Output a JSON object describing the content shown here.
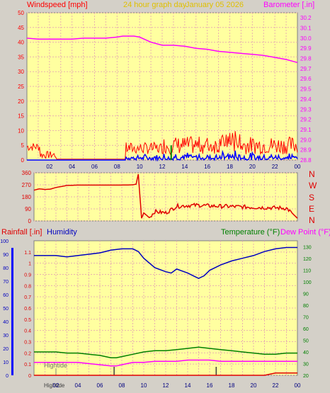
{
  "header": {
    "left_label": "Windspeed [mph]",
    "center_label": "24 hour graph day",
    "date": "January 05 2026",
    "right_label": "Barometer [.in]"
  },
  "middle": {
    "compass": [
      "N",
      "W",
      "S",
      "E",
      "N"
    ]
  },
  "lower_header": {
    "rainfall_label": "Rainfall [.in]",
    "humidity_label": "Humidity",
    "temperature_label": "Temperature (°F)",
    "dewpoint_label": "Dew Point (°F)"
  },
  "annotations": {
    "hightide": "Hightide",
    "hightide_bottom": "Hightide"
  },
  "colors": {
    "panel": "#ffffa0",
    "grid": "#e8b0b0",
    "wind": "#ff0000",
    "gust": "#0000ff",
    "barometer": "#ff00ff",
    "direction": "#e00000",
    "humidity": "#0000c0",
    "temperature": "#008000",
    "dewpoint": "#ff00ff",
    "rain": "#e00000"
  },
  "chart_data": [
    {
      "type": "line",
      "title": "24 hour graph day",
      "x_ticks": [
        "02",
        "04",
        "06",
        "08",
        "10",
        "12",
        "14",
        "16",
        "18",
        "20",
        "22",
        "00"
      ],
      "y_left": {
        "label": "Windspeed [mph]",
        "ylim": [
          0,
          50
        ],
        "ticks": [
          0,
          5,
          10,
          15,
          20,
          25,
          30,
          35,
          40,
          45,
          50
        ]
      },
      "y_right": {
        "label": "Barometer [.in]",
        "ylim": [
          28.8,
          30.25
        ],
        "ticks": [
          28.8,
          28.9,
          29.0,
          29.1,
          29.2,
          29.3,
          29.4,
          29.5,
          29.6,
          29.7,
          29.8,
          29.9,
          30.0,
          30.1,
          30.2
        ]
      },
      "series": [
        {
          "name": "Barometer",
          "axis": "right",
          "x": [
            0,
            1,
            2,
            3,
            4,
            5,
            6,
            7,
            8,
            8.5,
            9,
            9.5,
            10,
            11,
            12,
            13,
            14,
            15,
            16,
            17,
            18,
            19,
            20,
            21,
            22,
            23,
            24
          ],
          "values": [
            30.0,
            29.99,
            29.99,
            29.99,
            29.99,
            30.0,
            30.0,
            30.0,
            30.01,
            30.02,
            30.02,
            30.02,
            30.01,
            29.96,
            29.93,
            29.93,
            29.92,
            29.9,
            29.89,
            29.87,
            29.86,
            29.85,
            29.84,
            29.83,
            29.81,
            29.79,
            29.76
          ]
        }
      ]
    },
    {
      "type": "line",
      "title": "Wind direction",
      "x_ticks": [
        "02",
        "04",
        "06",
        "08",
        "10",
        "12",
        "14",
        "16",
        "18",
        "20",
        "22",
        "00"
      ],
      "y_ticks": [
        0,
        90,
        180,
        270,
        360
      ],
      "ylim": [
        0,
        360
      ],
      "series": [
        {
          "name": "Direction",
          "x": [
            0,
            0.5,
            1,
            1.5,
            2,
            3,
            4,
            5,
            6,
            7,
            8,
            9,
            9.3,
            9.5,
            9.8,
            10,
            10.5,
            11,
            12,
            13,
            14,
            15,
            16,
            17,
            18,
            19,
            20,
            21,
            22,
            23,
            23.5,
            24
          ],
          "values": [
            230,
            240,
            235,
            238,
            250,
            265,
            268,
            268,
            268,
            268,
            268,
            270,
            275,
            350,
            20,
            60,
            25,
            70,
            60,
            110,
            115,
            118,
            112,
            110,
            108,
            105,
            102,
            100,
            98,
            95,
            60,
            20
          ]
        }
      ]
    },
    {
      "type": "line",
      "x_ticks": [
        "02",
        "04",
        "06",
        "08",
        "10",
        "12",
        "14",
        "16",
        "18",
        "20",
        "22",
        "00"
      ],
      "y_left": {
        "label": "Rainfall [.in]",
        "ylim": [
          0,
          1.2
        ],
        "ticks": [
          0,
          0.1,
          0.2,
          0.3,
          0.4,
          0.5,
          0.6,
          0.7,
          0.8,
          0.9,
          1,
          1.1
        ]
      },
      "y_left2": {
        "label": "Humidity",
        "ylim": [
          0,
          100
        ],
        "ticks": [
          0,
          10,
          20,
          30,
          40,
          50,
          60,
          70,
          80,
          90,
          100
        ]
      },
      "y_right": {
        "label": "Temperature (°F)",
        "ylim": [
          20,
          135
        ],
        "ticks": [
          20,
          30,
          40,
          50,
          60,
          70,
          80,
          90,
          100,
          110,
          120,
          130
        ]
      },
      "series": [
        {
          "name": "Humidity",
          "axis": "left2",
          "x": [
            0,
            1,
            2,
            3,
            4,
            5,
            6,
            7,
            8,
            9,
            9.5,
            10,
            11,
            12,
            12.5,
            13,
            14,
            14.5,
            15,
            15.5,
            16,
            17,
            18,
            19,
            20,
            21,
            22,
            23,
            24
          ],
          "values": [
            89,
            89,
            89,
            88,
            89,
            90,
            91,
            93,
            94,
            94,
            92,
            87,
            80,
            77,
            76,
            79,
            76,
            74,
            72,
            74,
            78,
            82,
            85,
            87,
            89,
            92,
            94,
            95,
            95
          ]
        },
        {
          "name": "Temperature",
          "axis": "right",
          "x": [
            0,
            1,
            2,
            3,
            4,
            5,
            6,
            7,
            7.5,
            8,
            9,
            10,
            11,
            12,
            13,
            14,
            15,
            16,
            17,
            18,
            19,
            20,
            21,
            22,
            23,
            24
          ],
          "values": [
            40,
            40,
            40,
            39,
            39,
            38,
            37,
            35,
            35,
            36,
            38,
            40,
            41,
            41,
            42,
            43,
            44,
            43,
            42,
            41,
            40,
            39,
            38,
            38,
            39,
            39
          ]
        },
        {
          "name": "Dew Point",
          "axis": "right",
          "x": [
            0,
            1,
            2,
            3,
            4,
            5,
            6,
            7,
            7.5,
            8,
            9,
            10,
            11,
            12,
            13,
            14,
            15,
            16,
            17,
            18,
            19,
            20,
            21,
            22,
            23,
            24
          ],
          "values": [
            31,
            31,
            31,
            31,
            31,
            30,
            29,
            28,
            28,
            29,
            31,
            31,
            32,
            32,
            32,
            33,
            33,
            33,
            32,
            32,
            32,
            32,
            32,
            32,
            32,
            32
          ]
        },
        {
          "name": "Rainfall",
          "axis": "left",
          "x": [
            0,
            21,
            21.5,
            22,
            23,
            24
          ],
          "values": [
            0,
            0,
            0.01,
            0.02,
            0.02,
            0.02
          ]
        }
      ]
    }
  ]
}
